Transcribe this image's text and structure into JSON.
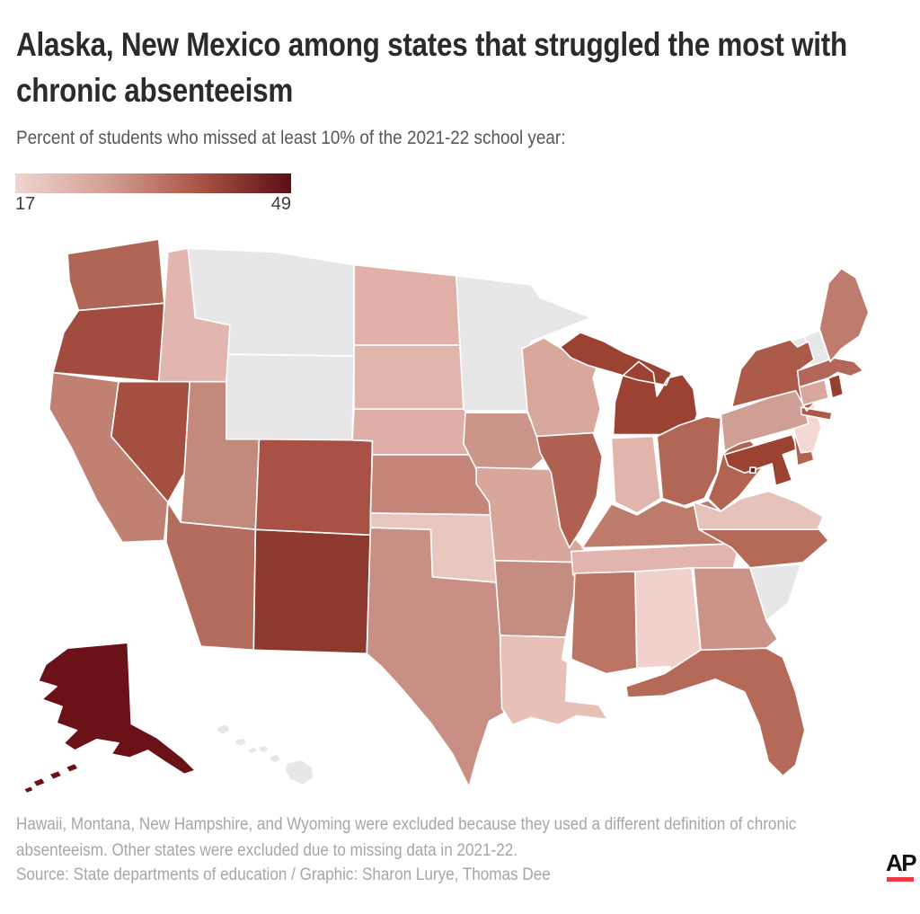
{
  "header": {
    "title": "Alaska, New Mexico among states that struggled the most with chronic absenteeism",
    "subtitle": "Percent of students who missed at least 10% of the 2021-22 school year:"
  },
  "legend": {
    "min_label": "17",
    "max_label": "49",
    "gradient_stops": [
      "#efd5d0",
      "#d19c90",
      "#a85243",
      "#5a0e15"
    ]
  },
  "map": {
    "excluded_color": "#e8e7e7",
    "border_color": "#ffffff"
  },
  "chart_data": {
    "type": "choropleth-map",
    "title": "Alaska, New Mexico among states that struggled the most with chronic absenteeism",
    "unit": "percent of students chronically absent, 2021-22",
    "scale": {
      "min": 17,
      "max": 49
    },
    "legend_labels": [
      "17",
      "49"
    ],
    "states": [
      {
        "abbr": "WA",
        "name": "Washington",
        "value": 30,
        "color": "#b06655"
      },
      {
        "abbr": "OR",
        "name": "Oregon",
        "value": 34,
        "color": "#a14c3e"
      },
      {
        "abbr": "CA",
        "name": "California",
        "value": 28,
        "color": "#c08173"
      },
      {
        "abbr": "NV",
        "name": "Nevada",
        "value": 35,
        "color": "#a44f40"
      },
      {
        "abbr": "ID",
        "name": "Idaho",
        "value": 21,
        "color": "#e2b5ae"
      },
      {
        "abbr": "UT",
        "name": "Utah",
        "value": 27,
        "color": "#c2897c"
      },
      {
        "abbr": "AZ",
        "name": "Arizona",
        "value": 29,
        "color": "#b36c5d"
      },
      {
        "abbr": "NM",
        "name": "New Mexico",
        "value": 40,
        "color": "#8e392e"
      },
      {
        "abbr": "CO",
        "name": "Colorado",
        "value": 34,
        "color": "#a85144"
      },
      {
        "abbr": "ND",
        "name": "North Dakota",
        "value": 22,
        "color": "#e1b1a9"
      },
      {
        "abbr": "SD",
        "name": "South Dakota",
        "value": 22,
        "color": "#e2b5ac"
      },
      {
        "abbr": "NE",
        "name": "Nebraska",
        "value": 24,
        "color": "#dfaea6"
      },
      {
        "abbr": "KS",
        "name": "Kansas",
        "value": 26,
        "color": "#c58679"
      },
      {
        "abbr": "OK",
        "name": "Oklahoma",
        "value": 20,
        "color": "#e9c6c0"
      },
      {
        "abbr": "TX",
        "name": "Texas",
        "value": 26,
        "color": "#c98f84"
      },
      {
        "abbr": "IA",
        "name": "Iowa",
        "value": 26,
        "color": "#cb958a"
      },
      {
        "abbr": "MO",
        "name": "Missouri",
        "value": 23,
        "color": "#d9a69c"
      },
      {
        "abbr": "AR",
        "name": "Arkansas",
        "value": 26,
        "color": "#c58c80"
      },
      {
        "abbr": "LA",
        "name": "Louisiana",
        "value": 19,
        "color": "#e7c0b8"
      },
      {
        "abbr": "WI",
        "name": "Wisconsin",
        "value": 23,
        "color": "#d9a89d"
      },
      {
        "abbr": "IL",
        "name": "Illinois",
        "value": 31,
        "color": "#b06050"
      },
      {
        "abbr": "IN",
        "name": "Indiana",
        "value": 22,
        "color": "#e1b4ac"
      },
      {
        "abbr": "MI",
        "name": "Michigan",
        "value": 38,
        "color": "#9c4232"
      },
      {
        "abbr": "OH",
        "name": "Ohio",
        "value": 30,
        "color": "#b26756"
      },
      {
        "abbr": "KY",
        "name": "Kentucky",
        "value": 27,
        "color": "#bd7b6b"
      },
      {
        "abbr": "TN",
        "name": "Tennessee",
        "value": 22,
        "color": "#e1b5ad"
      },
      {
        "abbr": "MS",
        "name": "Mississippi",
        "value": 28,
        "color": "#bc7465"
      },
      {
        "abbr": "AL",
        "name": "Alabama",
        "value": 18,
        "color": "#f0d1cb"
      },
      {
        "abbr": "GA",
        "name": "Georgia",
        "value": 26,
        "color": "#cc9488"
      },
      {
        "abbr": "FL",
        "name": "Florida",
        "value": 31,
        "color": "#b56959"
      },
      {
        "abbr": "NC",
        "name": "North Carolina",
        "value": 31,
        "color": "#b46957"
      },
      {
        "abbr": "VA",
        "name": "Virginia",
        "value": 21,
        "color": "#e6c2bb"
      },
      {
        "abbr": "WV",
        "name": "West Virginia",
        "value": 30,
        "color": "#b26453"
      },
      {
        "abbr": "MD",
        "name": "Maryland",
        "value": 36,
        "color": "#9c4233"
      },
      {
        "abbr": "DE",
        "name": "Delaware",
        "value": 31,
        "color": "#b2624f"
      },
      {
        "abbr": "NJ",
        "name": "New Jersey",
        "value": 17,
        "color": "#f3d8d3"
      },
      {
        "abbr": "PA",
        "name": "Pennsylvania",
        "value": 25,
        "color": "#cf9e94"
      },
      {
        "abbr": "NY",
        "name": "New York",
        "value": 31,
        "color": "#ac5b4a"
      },
      {
        "abbr": "CT",
        "name": "Connecticut",
        "value": 25,
        "color": "#d9a89d"
      },
      {
        "abbr": "RI",
        "name": "Rhode Island",
        "value": 34,
        "color": "#93402f"
      },
      {
        "abbr": "MA",
        "name": "Massachusetts",
        "value": 30,
        "color": "#b26758"
      },
      {
        "abbr": "ME",
        "name": "Maine",
        "value": 28,
        "color": "#bd7c6d"
      },
      {
        "abbr": "DC",
        "name": "District of Columbia",
        "value": 48,
        "color": "#701a20"
      },
      {
        "abbr": "AK",
        "name": "Alaska",
        "value": 49,
        "color": "#6b1219"
      }
    ],
    "excluded_states": [
      {
        "abbr": "MT",
        "name": "Montana"
      },
      {
        "abbr": "WY",
        "name": "Wyoming"
      },
      {
        "abbr": "MN",
        "name": "Minnesota"
      },
      {
        "abbr": "VT",
        "name": "Vermont"
      },
      {
        "abbr": "NH",
        "name": "New Hampshire"
      },
      {
        "abbr": "SC",
        "name": "South Carolina"
      },
      {
        "abbr": "HI",
        "name": "Hawaii"
      }
    ]
  },
  "footer": {
    "note": "Hawaii, Montana, New Hampshire, and Wyoming were excluded because they used a different definition of chronic absenteeism. Other states were excluded due to missing data in 2021-22.",
    "source": "Source: State departments of education / Graphic: Sharon Lurye, Thomas Dee",
    "logo_text": "AP",
    "logo_bar_color": "#ee3a44"
  }
}
